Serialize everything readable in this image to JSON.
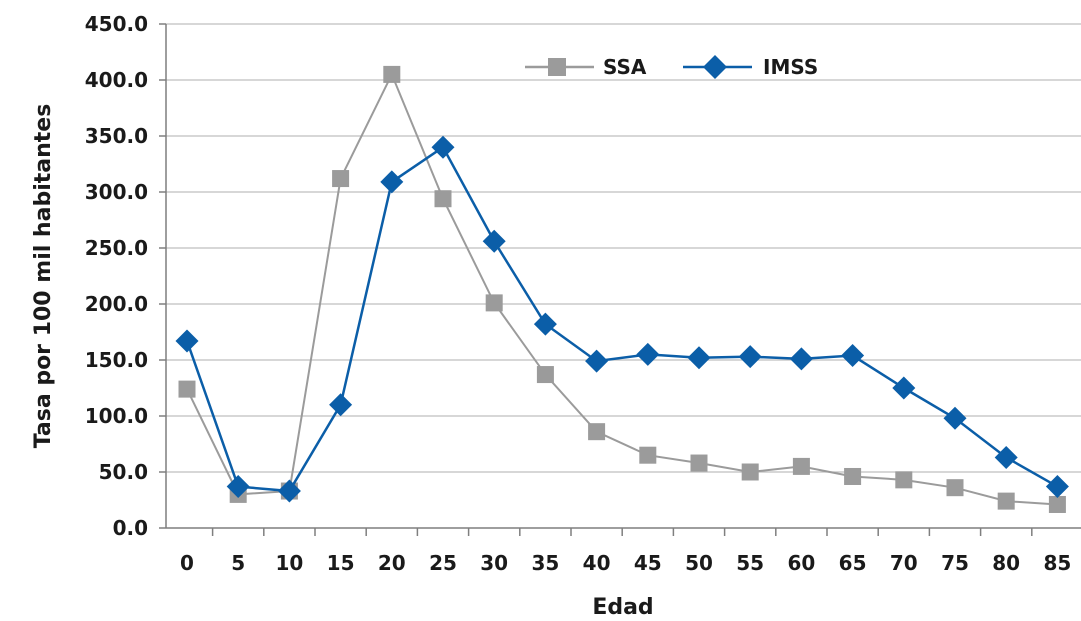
{
  "chart_data": {
    "type": "line",
    "xlabel": "Edad",
    "ylabel": "Tasa por 100 mil habitantes",
    "x": [
      0,
      5,
      10,
      15,
      20,
      25,
      30,
      35,
      40,
      45,
      50,
      55,
      60,
      65,
      70,
      75,
      80,
      85
    ],
    "x_tick_labels": [
      "0",
      "5",
      "10",
      "15",
      "20",
      "25",
      "30",
      "35",
      "40",
      "45",
      "50",
      "55",
      "60",
      "65",
      "70",
      "75",
      "80",
      "85"
    ],
    "y_tick_labels": [
      "0.0",
      "50.0",
      "100.0",
      "150.0",
      "200.0",
      "250.0",
      "300.0",
      "350.0",
      "400.0",
      "450.0"
    ],
    "ylim": [
      0,
      450
    ],
    "grid": true,
    "legend_position": "top-center",
    "series": [
      {
        "name": "SSA",
        "color": "#9b9b9b",
        "marker": "square",
        "values": [
          124,
          30,
          33,
          312,
          405,
          294,
          201,
          137,
          86,
          65,
          58,
          50,
          55,
          46,
          43,
          36,
          24,
          21
        ]
      },
      {
        "name": "IMSS",
        "color": "#0b5ea8",
        "marker": "diamond",
        "values": [
          167,
          37,
          33,
          110,
          309,
          340,
          256,
          182,
          149,
          155,
          152,
          153,
          151,
          154,
          125,
          98,
          63,
          37
        ]
      }
    ]
  }
}
